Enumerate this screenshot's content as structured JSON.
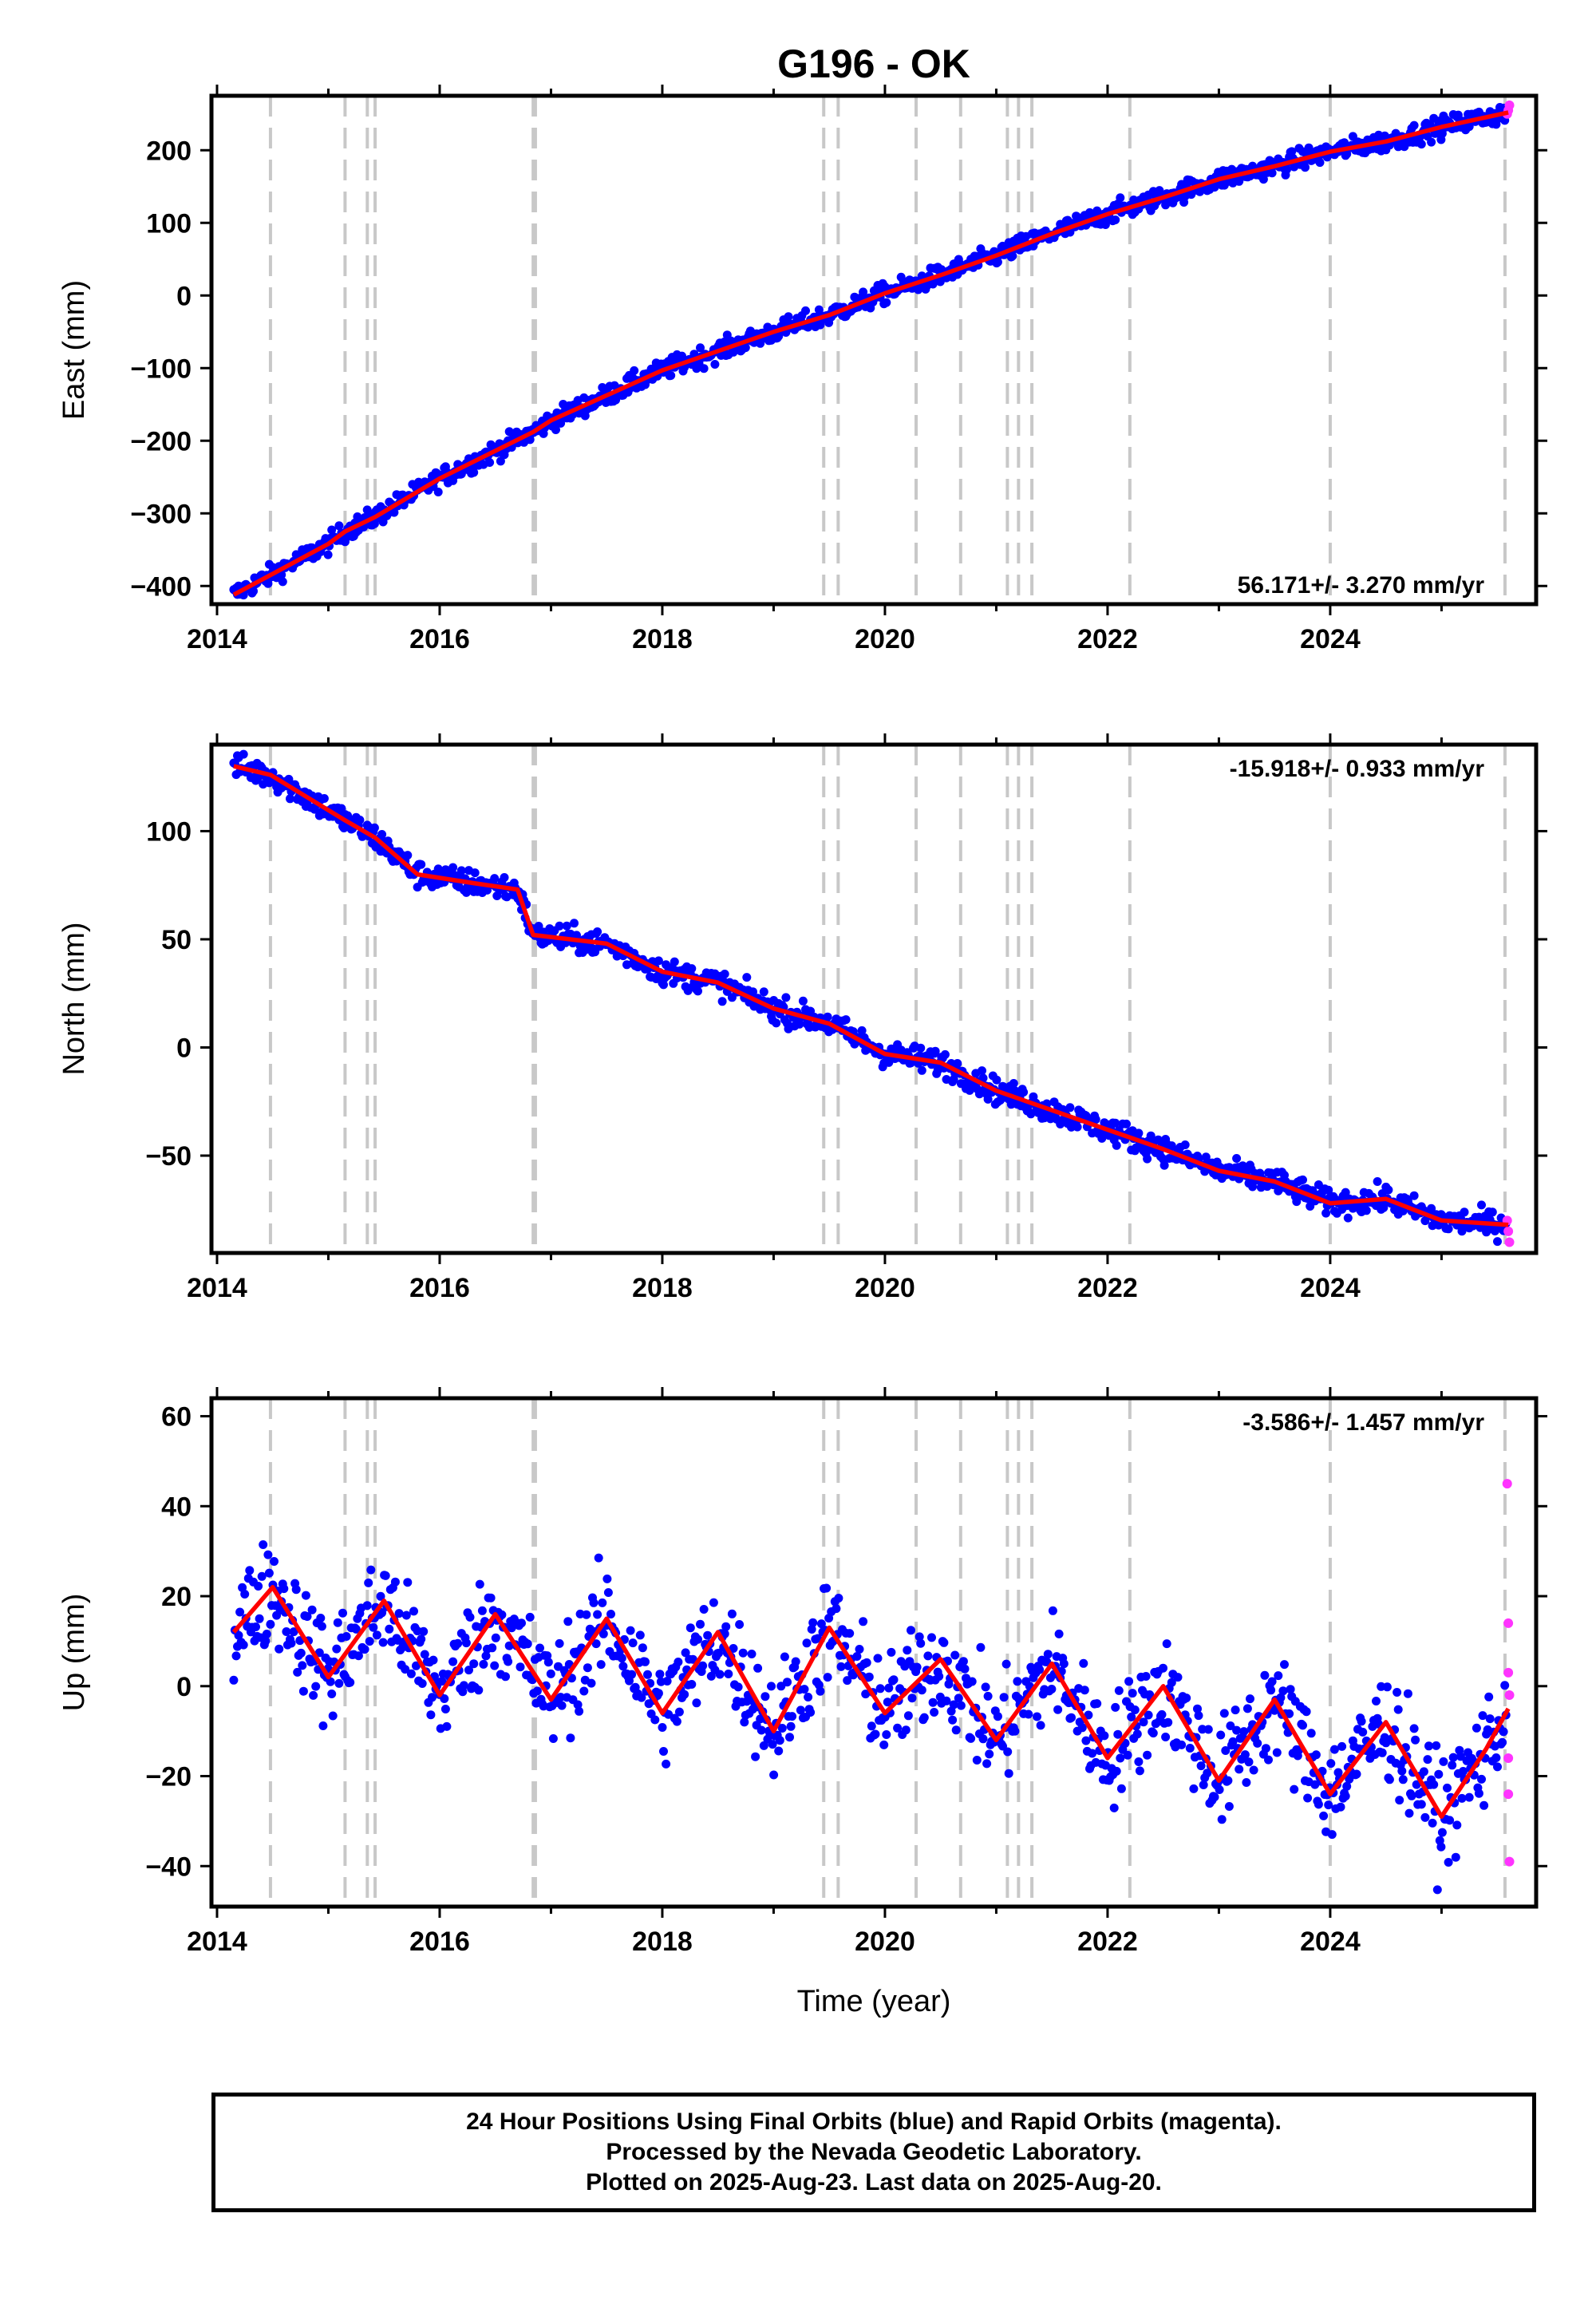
{
  "title": "G196 - OK",
  "colors": {
    "final": "#0000ff",
    "rapid": "#ff33ff",
    "model": "#ff0000",
    "event": "#c8c8c8",
    "axis": "#000000"
  },
  "xlabel": "Time (year)",
  "events": [
    2014.48,
    2015.15,
    2015.35,
    2015.42,
    2016.84,
    2016.86,
    2019.45,
    2019.58,
    2020.28,
    2020.68,
    2021.1,
    2021.2,
    2021.32,
    2022.2,
    2024.0,
    2025.57
  ],
  "footer": {
    "line1": "24 Hour Positions Using Final Orbits (blue) and Rapid Orbits (magenta).",
    "line2": "Processed by the Nevada Geodetic Laboratory.",
    "line3": "Plotted on 2025-Aug-23. Last data on 2025-Aug-20."
  },
  "chart_data": [
    {
      "type": "scatter",
      "ylabel": "East (mm)",
      "rate": "56.171+/- 3.270 mm/yr",
      "xlim": [
        2013.95,
        2025.85
      ],
      "ylim": [
        -425,
        275
      ],
      "xticks": [
        2014,
        2016,
        2018,
        2020,
        2022,
        2024
      ],
      "xticklabels": [
        "2014",
        "2016",
        "2018",
        "2020",
        "2022",
        "2024"
      ],
      "yticks": [
        -400,
        -300,
        -200,
        -100,
        0,
        100,
        200
      ],
      "yticklabels": [
        "−400",
        "−300",
        "−200",
        "−100",
        "0",
        "100",
        "200"
      ],
      "trend": {
        "x": [
          2014.15,
          2014.48,
          2015.0,
          2015.15,
          2015.42,
          2016.0,
          2016.84,
          2017.0,
          2018.0,
          2019.0,
          2019.5,
          2020.0,
          2020.5,
          2021.0,
          2021.5,
          2022.0,
          2022.5,
          2023.0,
          2023.5,
          2024.0,
          2024.5,
          2025.0,
          2025.6
        ],
        "y": [
          -412,
          -385,
          -342,
          -325,
          -305,
          -252,
          -188,
          -172,
          -103,
          -50,
          -27,
          3,
          28,
          55,
          85,
          112,
          135,
          160,
          178,
          198,
          212,
          232,
          252
        ]
      },
      "noise": 7,
      "rapid": {
        "x": [
          2025.59,
          2025.6,
          2025.61
        ],
        "y": [
          250,
          255,
          262
        ]
      }
    },
    {
      "type": "scatter",
      "ylabel": "North (mm)",
      "rate": "-15.918+/- 0.933 mm/yr",
      "xlim": [
        2013.95,
        2025.85
      ],
      "ylim": [
        -95,
        140
      ],
      "xticks": [
        2014,
        2016,
        2018,
        2020,
        2022,
        2024
      ],
      "xticklabels": [
        "2014",
        "2016",
        "2018",
        "2020",
        "2022",
        "2024"
      ],
      "yticks": [
        -50,
        0,
        50,
        100
      ],
      "yticklabels": [
        "−50",
        "0",
        "50",
        "100"
      ],
      "trend": {
        "x": [
          2014.15,
          2014.48,
          2015.15,
          2015.42,
          2015.8,
          2016.3,
          2016.7,
          2016.84,
          2017.5,
          2018.0,
          2018.5,
          2019.0,
          2019.5,
          2020.0,
          2020.5,
          2021.0,
          2021.5,
          2022.0,
          2022.5,
          2023.0,
          2023.5,
          2024.0,
          2024.5,
          2025.0,
          2025.6
        ],
        "y": [
          130,
          126,
          105,
          97,
          80,
          76,
          73,
          52,
          48,
          35,
          30,
          18,
          11,
          -3,
          -7,
          -20,
          -29,
          -38,
          -47,
          -57,
          -62,
          -72,
          -70,
          -80,
          -82
        ]
      },
      "noise": 3,
      "rapid": {
        "x": [
          2025.59,
          2025.6,
          2025.61
        ],
        "y": [
          -80,
          -85,
          -90
        ]
      }
    },
    {
      "type": "scatter",
      "ylabel": "Up (mm)",
      "rate": "-3.586+/- 1.457 mm/yr",
      "xlim": [
        2013.95,
        2025.85
      ],
      "ylim": [
        -49,
        64
      ],
      "xticks": [
        2014,
        2016,
        2018,
        2020,
        2022,
        2024
      ],
      "xticklabels": [
        "2014",
        "2016",
        "2018",
        "2020",
        "2022",
        "2024"
      ],
      "yticks": [
        -40,
        -20,
        0,
        20,
        40,
        60
      ],
      "yticklabels": [
        "−40",
        "−20",
        "0",
        "20",
        "40",
        "60"
      ],
      "trend": {
        "x": [
          2014.15,
          2014.5,
          2015.0,
          2015.5,
          2016.0,
          2016.5,
          2017.0,
          2017.5,
          2018.0,
          2018.5,
          2019.0,
          2019.5,
          2020.0,
          2020.5,
          2021.0,
          2021.5,
          2022.0,
          2022.5,
          2023.0,
          2023.5,
          2024.0,
          2024.5,
          2025.0,
          2025.4,
          2025.6
        ],
        "y": [
          12,
          22,
          2,
          19,
          -2,
          16,
          -3,
          15,
          -6,
          12,
          -10,
          13,
          -6,
          6,
          -12,
          5,
          -16,
          0,
          -21,
          -3,
          -24,
          -8,
          -29,
          -14,
          -5
        ]
      },
      "noise": 6,
      "rapid": {
        "x": [
          2025.59,
          2025.6,
          2025.6,
          2025.61,
          2025.6,
          2025.61,
          2025.6
        ],
        "y": [
          45,
          14,
          3,
          -2,
          -24,
          -39,
          -16
        ]
      }
    }
  ]
}
